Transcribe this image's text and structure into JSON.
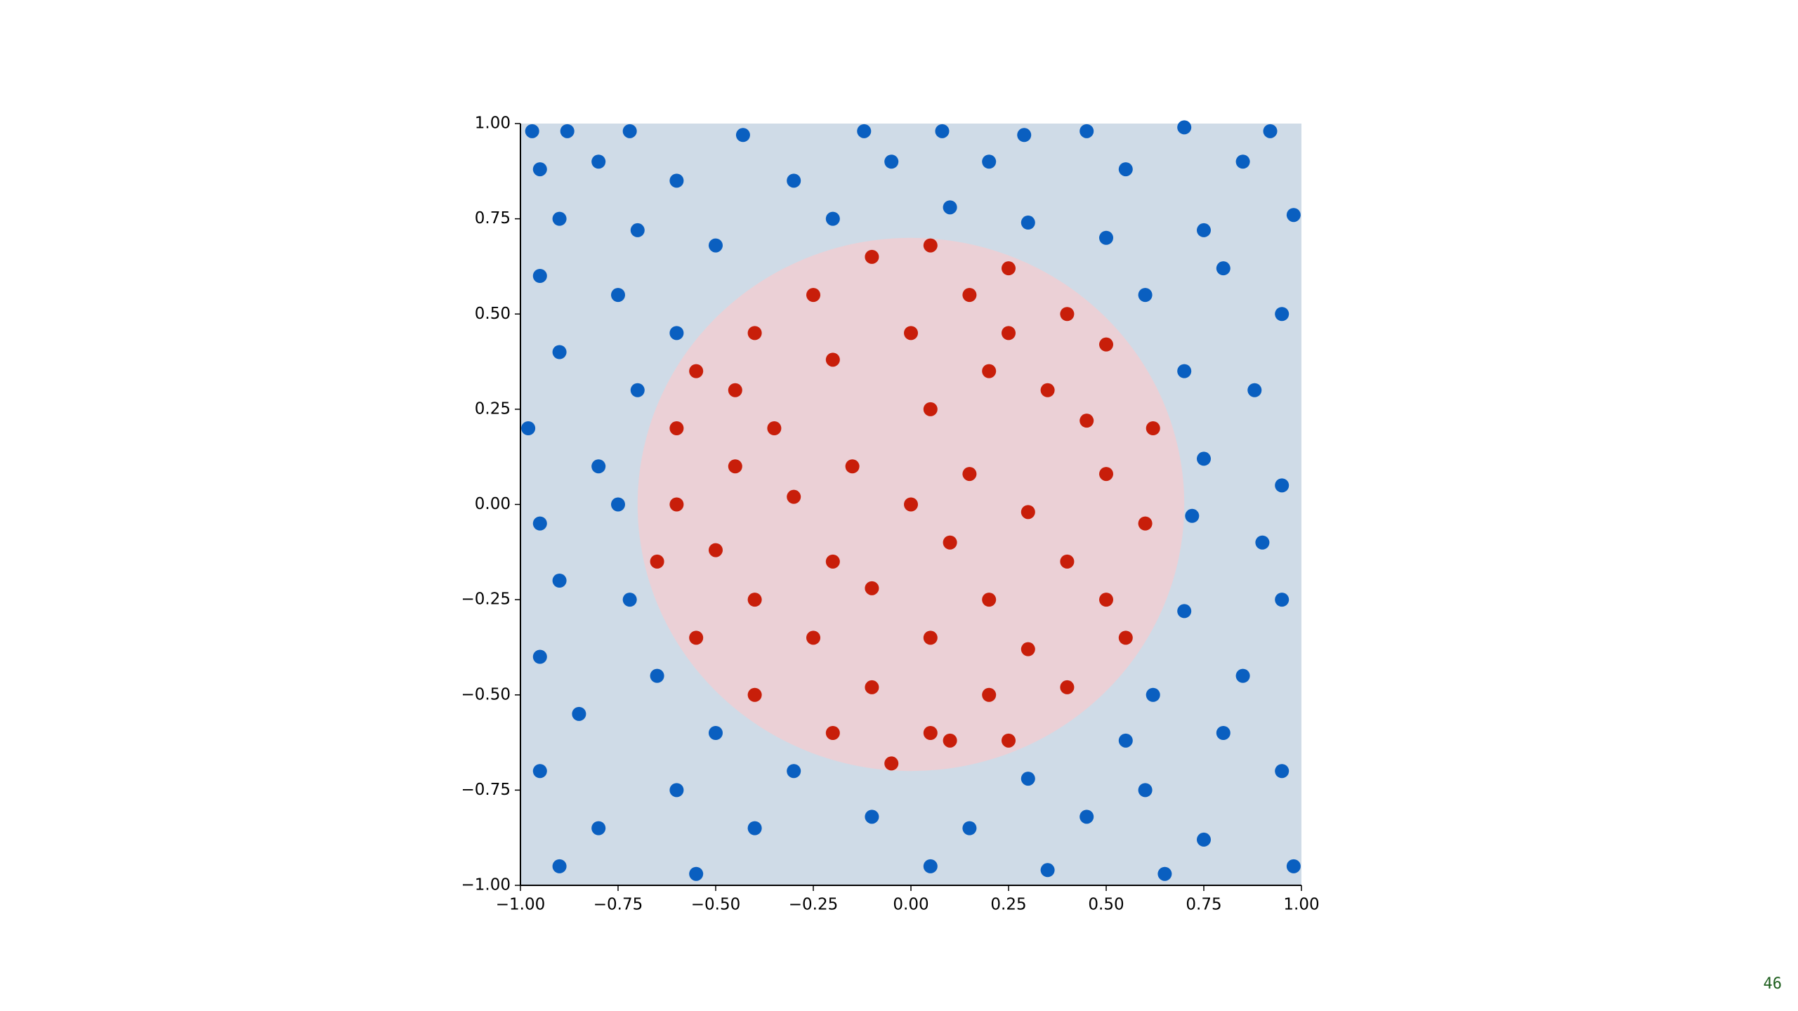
{
  "chart_data": {
    "type": "scatter",
    "xlim": [
      -1,
      1
    ],
    "ylim": [
      -1,
      1
    ],
    "xticks": [
      {
        "value": -1,
        "label": "−1.00"
      },
      {
        "value": -0.75,
        "label": "−0.75"
      },
      {
        "value": -0.5,
        "label": "−0.50"
      },
      {
        "value": -0.25,
        "label": "−0.25"
      },
      {
        "value": 0,
        "label": "0.00"
      },
      {
        "value": 0.25,
        "label": "0.25"
      },
      {
        "value": 0.5,
        "label": "0.50"
      },
      {
        "value": 0.75,
        "label": "0.75"
      },
      {
        "value": 1,
        "label": "1.00"
      }
    ],
    "yticks": [
      {
        "value": -1,
        "label": "−1.00"
      },
      {
        "value": -0.75,
        "label": "−0.75"
      },
      {
        "value": -0.5,
        "label": "−0.50"
      },
      {
        "value": -0.25,
        "label": "−0.25"
      },
      {
        "value": 0,
        "label": "0.00"
      },
      {
        "value": 0.25,
        "label": "0.25"
      },
      {
        "value": 0.5,
        "label": "0.50"
      },
      {
        "value": 0.75,
        "label": "0.75"
      },
      {
        "value": 1,
        "label": "1.00"
      }
    ],
    "background_color": "#cfdbe7",
    "circle": {
      "radius": 0.7,
      "color": "#ebd0d6"
    },
    "series": [
      {
        "color": "#0a5fc0",
        "x": [
          -0.97,
          -0.88,
          -0.72,
          -0.43,
          -0.12,
          0.08,
          0.29,
          0.45,
          0.7,
          0.92,
          -0.95,
          -0.8,
          -0.6,
          -0.3,
          -0.05,
          0.2,
          0.55,
          0.85,
          -0.9,
          -0.7,
          -0.5,
          -0.2,
          0.1,
          0.3,
          0.5,
          0.75,
          0.98,
          -0.95,
          -0.75,
          -0.6,
          0.6,
          0.8,
          0.95,
          -0.9,
          -0.7,
          0.7,
          0.88,
          -0.98,
          -0.8,
          0.75,
          0.95,
          -0.95,
          -0.75,
          0.72,
          0.9,
          -0.9,
          -0.72,
          0.7,
          0.95,
          -0.95,
          -0.65,
          0.62,
          0.85,
          -0.85,
          -0.5,
          0.55,
          0.8,
          -0.95,
          -0.6,
          -0.3,
          0.3,
          0.6,
          0.95,
          -0.8,
          -0.4,
          -0.1,
          0.15,
          0.45,
          0.75,
          -0.9,
          -0.55,
          0.05,
          0.35,
          0.65,
          0.98
        ],
        "y": [
          0.98,
          0.98,
          0.98,
          0.97,
          0.98,
          0.98,
          0.97,
          0.98,
          0.99,
          0.98,
          0.88,
          0.9,
          0.85,
          0.85,
          0.9,
          0.9,
          0.88,
          0.9,
          0.75,
          0.72,
          0.68,
          0.75,
          0.78,
          0.74,
          0.7,
          0.72,
          0.76,
          0.6,
          0.55,
          0.45,
          0.55,
          0.62,
          0.5,
          0.4,
          0.3,
          0.35,
          0.3,
          0.2,
          0.1,
          0.12,
          0.05,
          -0.05,
          0.0,
          -0.03,
          -0.1,
          -0.2,
          -0.25,
          -0.28,
          -0.25,
          -0.4,
          -0.45,
          -0.5,
          -0.45,
          -0.55,
          -0.6,
          -0.62,
          -0.6,
          -0.7,
          -0.75,
          -0.7,
          -0.72,
          -0.75,
          -0.7,
          -0.85,
          -0.85,
          -0.82,
          -0.85,
          -0.82,
          -0.88,
          -0.95,
          -0.97,
          -0.95,
          -0.96,
          -0.97,
          -0.95
        ]
      },
      {
        "color": "#c81e0a",
        "x": [
          -0.1,
          0.05,
          0.25,
          -0.25,
          0.15,
          0.4,
          -0.4,
          0.0,
          0.5,
          -0.55,
          -0.2,
          0.2,
          0.35,
          -0.6,
          -0.35,
          0.05,
          0.45,
          0.62,
          -0.45,
          -0.15,
          0.15,
          0.5,
          -0.6,
          -0.3,
          0.0,
          0.3,
          0.6,
          -0.5,
          -0.2,
          0.1,
          0.4,
          -0.65,
          -0.4,
          -0.1,
          0.2,
          0.5,
          -0.55,
          -0.25,
          0.05,
          0.3,
          0.55,
          -0.4,
          -0.1,
          0.2,
          0.4,
          -0.2,
          0.05,
          0.25,
          -0.05,
          0.1,
          -0.45,
          0.25
        ],
        "y": [
          0.65,
          0.68,
          0.62,
          0.55,
          0.55,
          0.5,
          0.45,
          0.45,
          0.42,
          0.35,
          0.38,
          0.35,
          0.3,
          0.2,
          0.2,
          0.25,
          0.22,
          0.2,
          0.1,
          0.1,
          0.08,
          0.08,
          0.0,
          0.02,
          0.0,
          -0.02,
          -0.05,
          -0.12,
          -0.15,
          -0.1,
          -0.15,
          -0.15,
          -0.25,
          -0.22,
          -0.25,
          -0.25,
          -0.35,
          -0.35,
          -0.35,
          -0.38,
          -0.35,
          -0.5,
          -0.48,
          -0.5,
          -0.48,
          -0.6,
          -0.6,
          -0.62,
          -0.68,
          -0.62,
          0.3,
          0.45
        ]
      }
    ]
  },
  "page_number": "46"
}
